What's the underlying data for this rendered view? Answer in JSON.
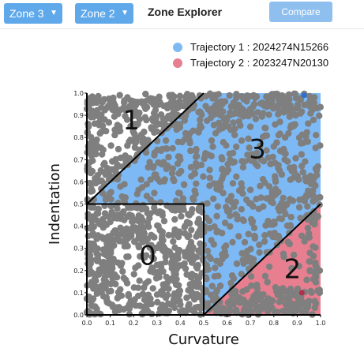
{
  "toolbar": {
    "zone_select_left": "Zone 3",
    "zone_select_right": "Zone 2",
    "title": "Zone Explorer",
    "compare_label": "Compare"
  },
  "legend": [
    {
      "label": "Trajectory 1 : 2024274N15266",
      "color": "#7dbaf5"
    },
    {
      "label": "Trajectory 2 : 2023247N20130",
      "color": "#e77f90"
    }
  ],
  "chart_data": {
    "type": "scatter",
    "xlabel": "Curvature",
    "ylabel": "Indentation",
    "xlim": [
      0,
      1
    ],
    "ylim": [
      0,
      1
    ],
    "x_ticks": [
      "0.0",
      "0.1",
      "0.2",
      "0.3",
      "0.4",
      "0.5",
      "0.6",
      "0.7",
      "0.8",
      "0.9",
      "1.0"
    ],
    "y_ticks": [
      "0.0",
      "0.1",
      "0.2",
      "0.3",
      "0.4",
      "0.5",
      "0.6",
      "0.7",
      "0.8",
      "0.9",
      "1.0"
    ],
    "zones": [
      {
        "label": "0",
        "polygon": [
          [
            0,
            0
          ],
          [
            0.5,
            0
          ],
          [
            0.5,
            0.5
          ],
          [
            0,
            0.5
          ]
        ],
        "label_at": [
          0.26,
          0.26
        ]
      },
      {
        "label": "1",
        "polygon": [
          [
            0,
            0.5
          ],
          [
            0.5,
            1
          ],
          [
            0,
            1
          ]
        ],
        "label_at": [
          0.19,
          0.87
        ]
      },
      {
        "label": "2",
        "polygon": [
          [
            0.5,
            0
          ],
          [
            1,
            0
          ],
          [
            1,
            0.5
          ]
        ],
        "label_at": [
          0.88,
          0.2
        ]
      },
      {
        "label": "3",
        "polygon": [
          [
            0,
            0.5
          ],
          [
            0.5,
            1
          ],
          [
            1,
            1
          ],
          [
            1,
            0.5
          ],
          [
            0.5,
            0
          ],
          [
            0.5,
            0.5
          ]
        ],
        "label_at": [
          0.73,
          0.74
        ]
      }
    ],
    "zone_fills": [
      {
        "zone": "3",
        "color": "#7dbaf5"
      },
      {
        "zone": "2",
        "color": "#e77f90"
      }
    ],
    "background_points_color": "#7f7f7f",
    "highlight_points": [
      {
        "x": 0.92,
        "y": 0.1,
        "color": "#b0304a"
      },
      {
        "x": 0.93,
        "y": 0.99,
        "color": "#2f6fd0"
      }
    ],
    "grid": false
  }
}
